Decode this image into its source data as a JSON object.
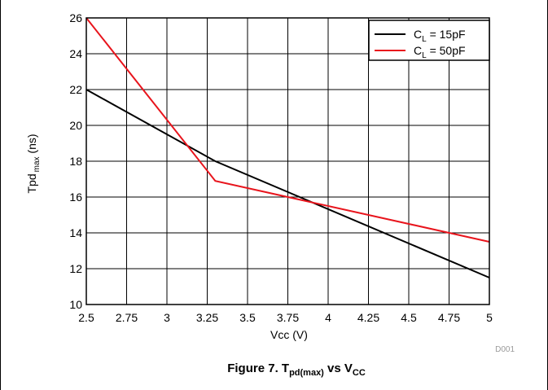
{
  "chart_data": {
    "type": "line",
    "xlabel": "Vcc (V)",
    "ylabel_main": "Tpd",
    "ylabel_sub": "max",
    "ylabel_unit": " (ns)",
    "xlim": [
      2.5,
      5
    ],
    "ylim": [
      10,
      26
    ],
    "x_ticks": [
      2.5,
      2.75,
      3,
      3.25,
      3.5,
      3.75,
      4,
      4.25,
      4.5,
      4.75,
      5
    ],
    "x_tick_labels": [
      "2.5",
      "2.75",
      "3",
      "3.25",
      "3.5",
      "3.75",
      "4",
      "4.25",
      "4.5",
      "4.75",
      "5"
    ],
    "y_ticks": [
      10,
      12,
      14,
      16,
      18,
      20,
      22,
      24,
      26
    ],
    "y_tick_labels": [
      "10",
      "12",
      "14",
      "16",
      "18",
      "20",
      "22",
      "24",
      "26"
    ],
    "grid": true,
    "legend_position": "top-right",
    "series": [
      {
        "name_main": "C",
        "name_sub": "L",
        "name_rest": " = 15pF",
        "color": "#000000",
        "x": [
          2.5,
          3.3,
          5
        ],
        "y": [
          22,
          18,
          11.5
        ]
      },
      {
        "name_main": "C",
        "name_sub": "L",
        "name_rest": " = 50pF",
        "color": "#e8141c",
        "x": [
          2.5,
          3.3,
          5
        ],
        "y": [
          26,
          16.9,
          13.5
        ]
      }
    ],
    "code": "D001",
    "caption": {
      "prefix": "Figure 7. T",
      "sub1": "pd(max)",
      "mid": " vs V",
      "sub2": "CC"
    }
  }
}
